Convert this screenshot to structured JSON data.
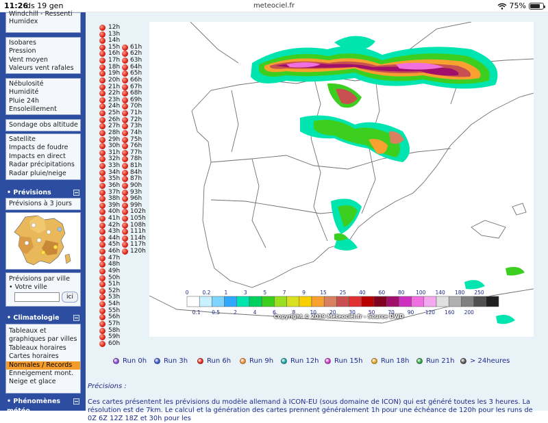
{
  "status": {
    "time": "11:26",
    "date": "ds 19 gen",
    "url": "meteociel.fr",
    "battery": "75%",
    "battery_level": 0.75
  },
  "sidebar": {
    "top_partial": [
      "Windchill - Ressenti",
      "Humidex"
    ],
    "group1": [
      "Isobares",
      "Pression",
      "Vent moyen",
      "Valeurs vent rafales"
    ],
    "group2": [
      "Nébulosité",
      "Humidité",
      "Pluie 24h",
      "Ensoleillement"
    ],
    "group3": [
      "Sondage obs altitude"
    ],
    "group4": [
      "Satellite",
      "Impacts de foudre",
      "Impacts en direct",
      "Radar précipitations",
      "Radar pluie/neige"
    ],
    "previsions_title": "• Prévisions",
    "previsions_3j": "Prévisions à 3 jours",
    "prev_ville": "Prévisions par ville",
    "votre_ville": "• Votre ville",
    "ici": "ici",
    "climatologie_title": "• Climatologie",
    "clima_items": [
      "Tableaux et graphiques par villes",
      "Tableaux horaires",
      "Cartes horaires",
      "Normales / Records",
      "Enneigement mont.",
      "Neige et glace"
    ],
    "phenomenes_title": "• Phénomènes météo"
  },
  "hours_col1": [
    "12h",
    "13h",
    "14h",
    "15h",
    "16h",
    "17h",
    "18h",
    "19h",
    "20h",
    "21h",
    "22h",
    "23h",
    "24h",
    "25h",
    "26h",
    "27h",
    "28h",
    "29h",
    "30h",
    "31h",
    "32h",
    "33h",
    "34h",
    "35h",
    "36h",
    "37h",
    "38h",
    "39h",
    "40h",
    "41h",
    "42h",
    "43h",
    "44h",
    "45h",
    "46h",
    "47h",
    "48h",
    "49h",
    "50h",
    "51h",
    "52h",
    "53h",
    "54h",
    "55h",
    "56h",
    "57h",
    "58h",
    "59h",
    "60h"
  ],
  "hours_col2": [
    "61h",
    "62h",
    "63h",
    "64h",
    "65h",
    "66h",
    "67h",
    "68h",
    "69h",
    "70h",
    "71h",
    "72h",
    "73h",
    "74h",
    "75h",
    "76h",
    "77h",
    "78h",
    "81h",
    "84h",
    "87h",
    "90h",
    "93h",
    "96h",
    "99h",
    "102h",
    "105h",
    "108h",
    "111h",
    "114h",
    "117h",
    "120h"
  ],
  "legend": {
    "top_labels": [
      "0",
      "0.2",
      "1",
      "3",
      "5",
      "7",
      "9",
      "15",
      "25",
      "40",
      "60",
      "80",
      "100",
      "140",
      "180",
      "250"
    ],
    "bottom_labels": [
      "0.1",
      "0.5",
      "2",
      "4",
      "6",
      "8",
      "10",
      "20",
      "30",
      "50",
      "70",
      "90",
      "120",
      "160",
      "200"
    ],
    "colors": [
      "#ffffff",
      "#c8f0ff",
      "#7fd4ff",
      "#30a8ff",
      "#00e5b0",
      "#00d060",
      "#3ccf20",
      "#9be020",
      "#d8e020",
      "#f8d000",
      "#f8a030",
      "#d88060",
      "#c85050",
      "#e03030",
      "#b80000",
      "#800020",
      "#a0106a",
      "#d030c0",
      "#f070e0",
      "#f4a8f0",
      "#e0e0e0",
      "#b0b0b0",
      "#808080",
      "#505050",
      "#202020"
    ],
    "copyright": "Copyright © 2019 Meteociel.fr - Source DWD"
  },
  "runs": [
    {
      "label": "Run 0h",
      "color": "#8a4bd0"
    },
    {
      "label": "Run 3h",
      "color": "#3b58c8"
    },
    {
      "label": "Run 6h",
      "color": "#e2281d"
    },
    {
      "label": "Run 9h",
      "color": "#f08a30"
    },
    {
      "label": "Run 12h",
      "color": "#1aa0a0"
    },
    {
      "label": "Run 15h",
      "color": "#c43cc4"
    },
    {
      "label": "Run 18h",
      "color": "#e0a020"
    },
    {
      "label": "Run 21h",
      "color": "#30a040"
    },
    {
      "label": "> 24heures",
      "color": "#555555"
    }
  ],
  "precisions": "Précisions :",
  "description": "Ces cartes présentent les prévisions du modèle allemand à ICON-EU (sous domaine de ICON) qui est généré toutes les 3 heures. La résolution est de 7km. Le calcul et la génération des cartes prennent généralement 1h pour une échéance de 120h pour les runs de 0Z 6Z 12Z 18Z et 30h pour les"
}
